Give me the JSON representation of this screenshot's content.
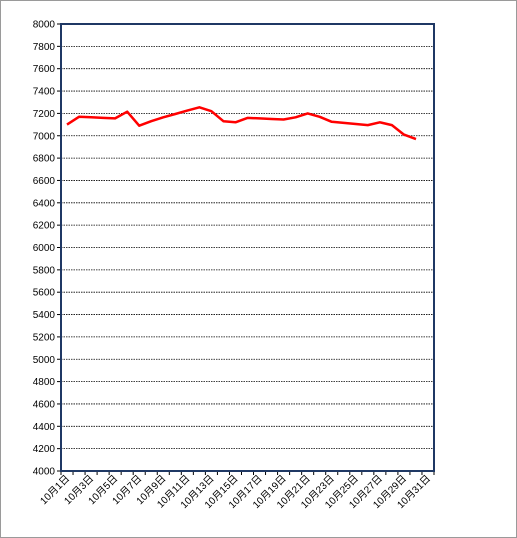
{
  "chart_data": {
    "type": "line",
    "title": "",
    "xlabel": "",
    "ylabel": "",
    "ylim": [
      4000,
      8000
    ],
    "ytick_step": 200,
    "grid": true,
    "legend": "none",
    "colors": {
      "line": "#ff0000",
      "frame": "#1f3864",
      "grid": "#000000"
    },
    "x": [
      "10月1日",
      "10月2日",
      "10月3日",
      "10月4日",
      "10月5日",
      "10月6日",
      "10月7日",
      "10月8日",
      "10月9日",
      "10月10日",
      "10月11日",
      "10月12日",
      "10月13日",
      "10月14日",
      "10月15日",
      "10月16日",
      "10月17日",
      "10月18日",
      "10月19日",
      "10月20日",
      "10月21日",
      "10月22日",
      "10月23日",
      "10月24日",
      "10月25日",
      "10月26日",
      "10月27日",
      "10月28日",
      "10月29日",
      "10月30日",
      "10月31日"
    ],
    "xtick_labels": [
      "10月1日",
      "10月3日",
      "10月5日",
      "10月7日",
      "10月9日",
      "10月11日",
      "10月13日",
      "10月15日",
      "10月17日",
      "10月19日",
      "10月21日",
      "10月23日",
      "10月25日",
      "10月27日",
      "10月29日",
      "10月31日"
    ],
    "series": [
      {
        "values": [
          7100,
          7170,
          7165,
          7160,
          7155,
          7215,
          7090,
          7130,
          7165,
          7195,
          7225,
          7255,
          7220,
          7130,
          7120,
          7160,
          7155,
          7150,
          7145,
          7165,
          7200,
          7170,
          7125,
          7115,
          7105,
          7095,
          7120,
          7095,
          7010,
          6970,
          null
        ]
      }
    ]
  }
}
